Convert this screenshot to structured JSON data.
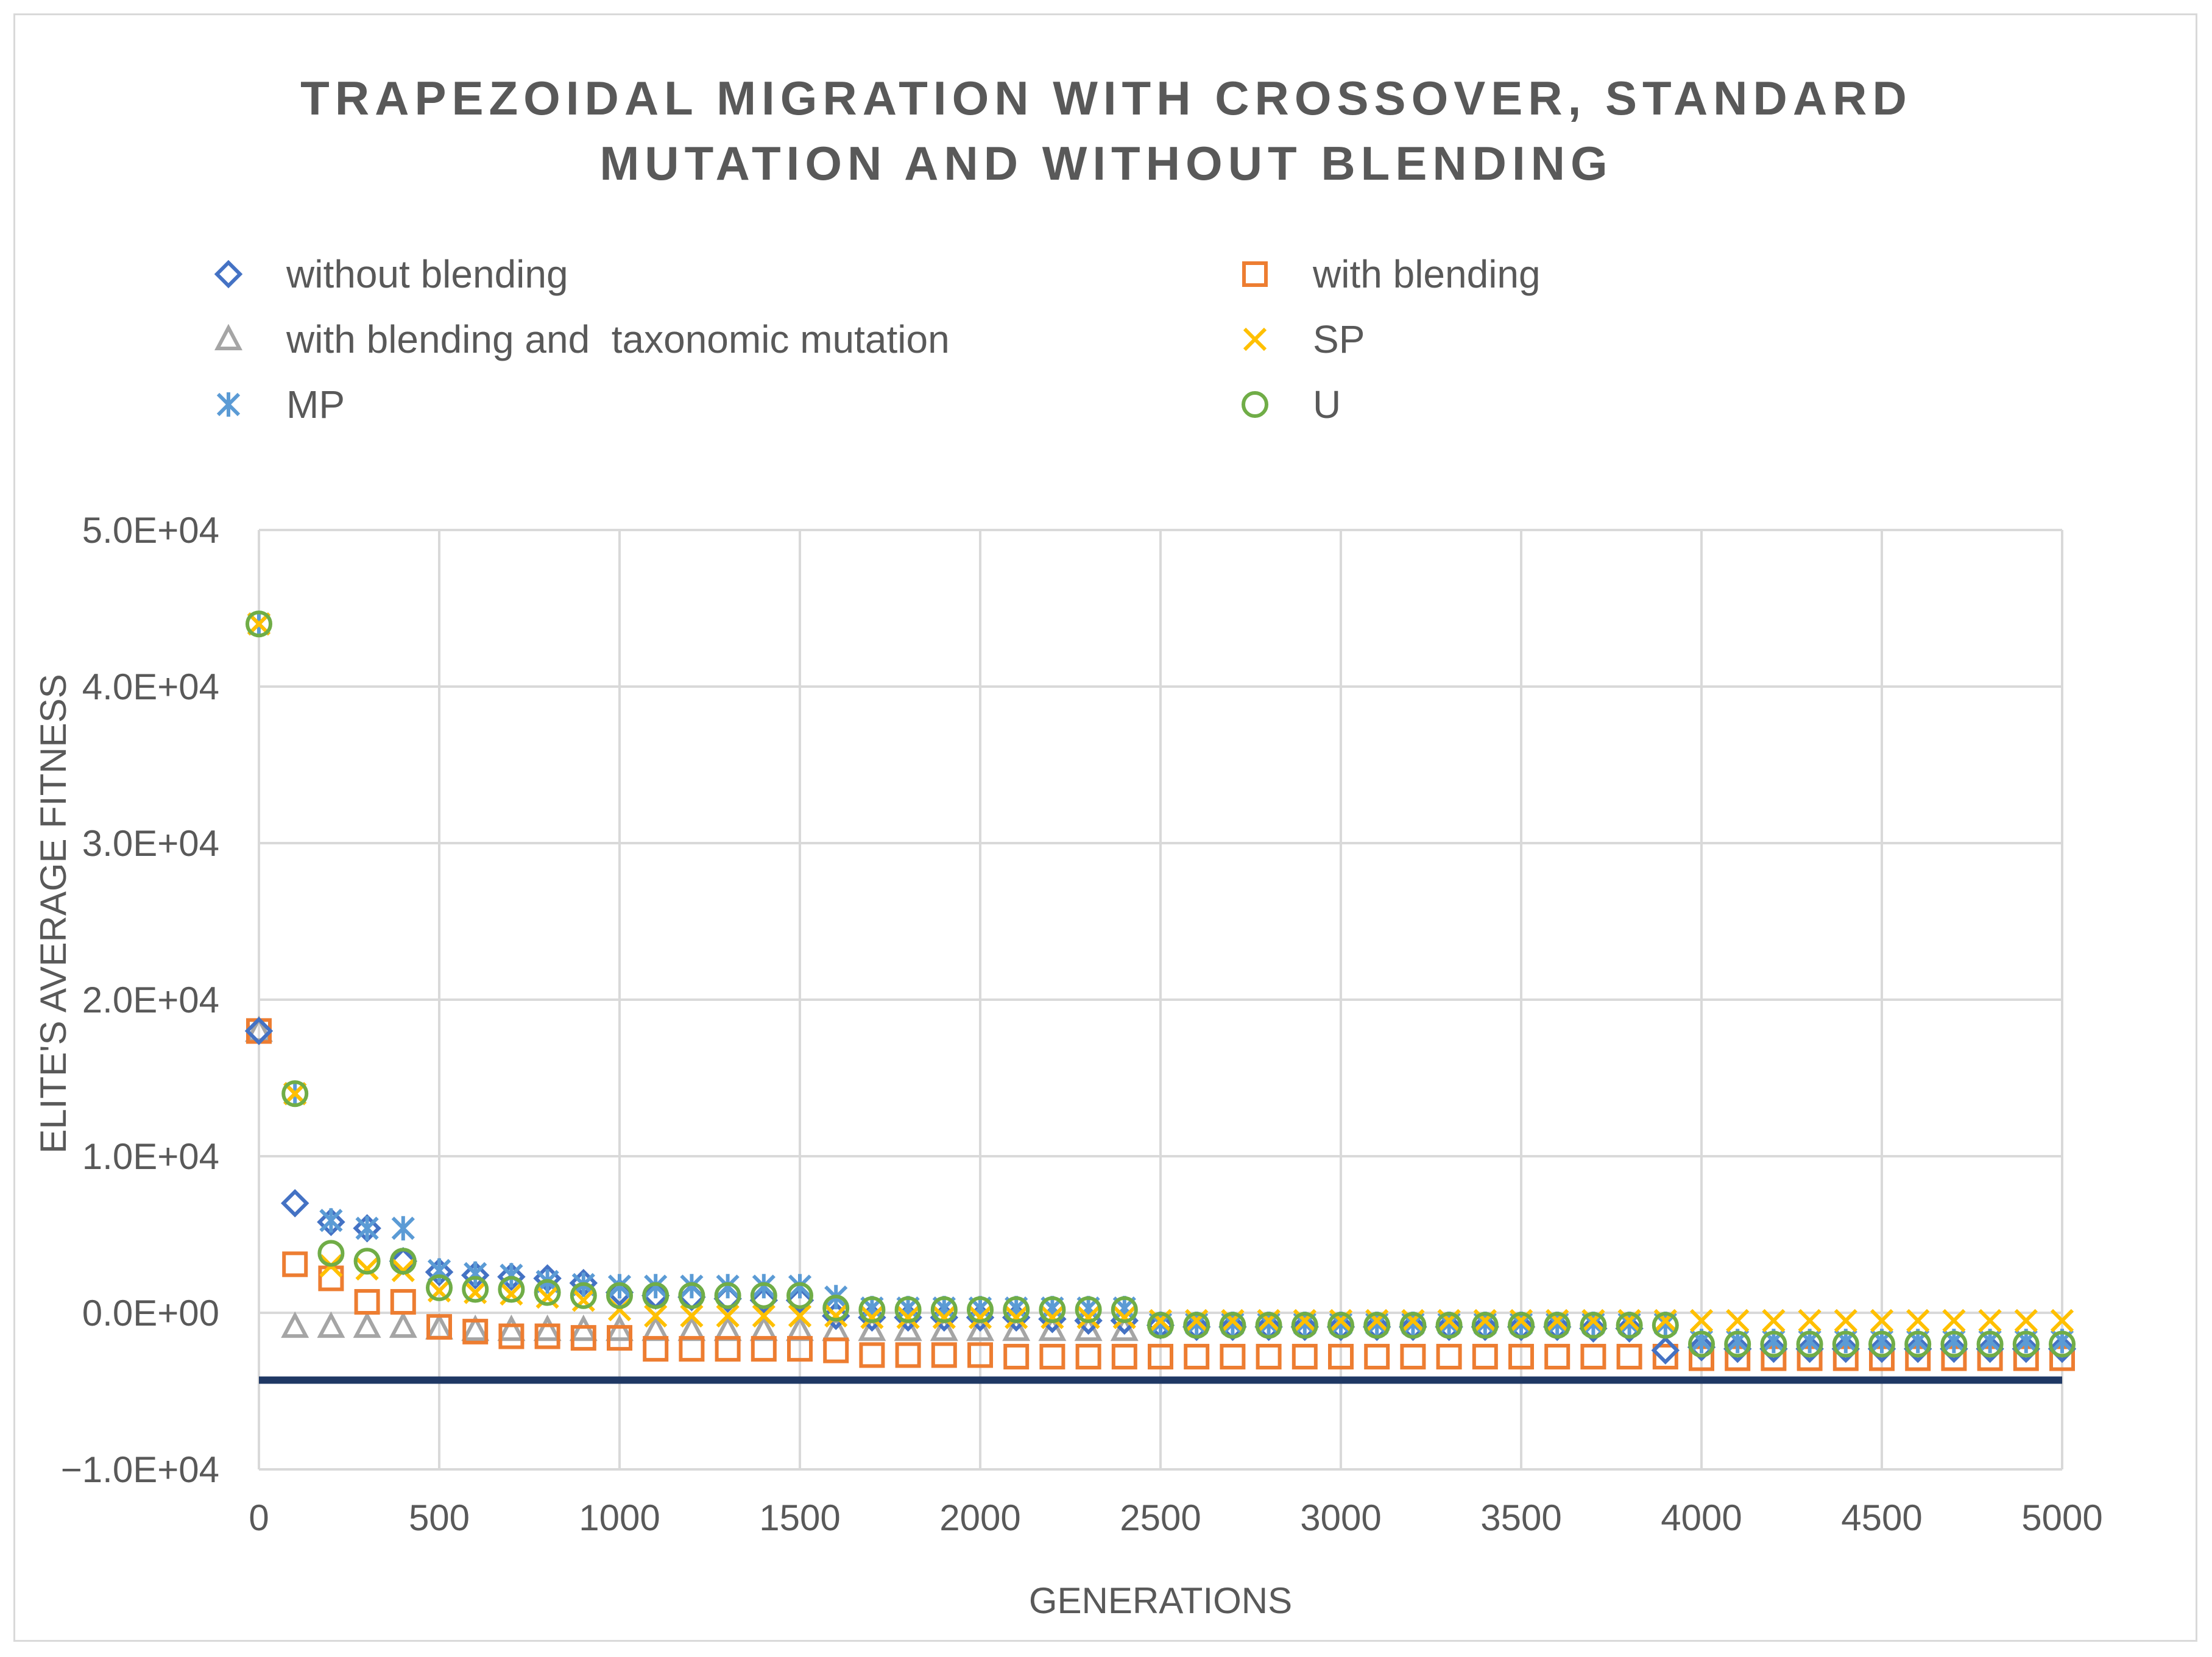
{
  "chart_data": {
    "type": "scatter",
    "title_lines": [
      "TRAPEZOIDAL MIGRATION WITH CROSSOVER, STANDARD",
      "MUTATION AND WITHOUT BLENDING"
    ],
    "xlabel": "GENERATIONS",
    "ylabel": "ELITE'S AVERAGE FITNESS",
    "xlim": [
      0,
      5000
    ],
    "ylim": [
      -10000,
      50000
    ],
    "x_ticks": [
      "0",
      "500",
      "1000",
      "1500",
      "2000",
      "2500",
      "3000",
      "3500",
      "4000",
      "4500",
      "5000"
    ],
    "y_ticks": [
      "−1.0E+04",
      "0.0E+00",
      "1.0E+04",
      "2.0E+04",
      "3.0E+04",
      "4.0E+04",
      "5.0E+04"
    ],
    "reference_line": {
      "y": -4300,
      "color": "#1f3864"
    },
    "series": [
      {
        "name": "without blending",
        "marker": "diamond",
        "color": "#4472c4",
        "x": [
          0,
          100,
          200,
          300,
          400,
          500,
          600,
          700,
          800,
          900,
          1000,
          1100,
          1200,
          1300,
          1400,
          1500,
          1600,
          1700,
          1800,
          1900,
          2000,
          2100,
          2200,
          2300,
          2400,
          2500,
          2600,
          2700,
          2800,
          2900,
          3000,
          3100,
          3200,
          3300,
          3400,
          3500,
          3600,
          3700,
          3800,
          3900,
          4000,
          4100,
          4200,
          4300,
          4400,
          4500,
          4600,
          4700,
          4800,
          4900,
          5000
        ],
        "y": [
          18000,
          7000,
          5800,
          5400,
          3300,
          2600,
          2400,
          2300,
          2200,
          1900,
          1300,
          1100,
          1000,
          900,
          800,
          800,
          -200,
          -300,
          -300,
          -300,
          -300,
          -300,
          -400,
          -500,
          -500,
          -800,
          -900,
          -900,
          -900,
          -900,
          -900,
          -900,
          -900,
          -900,
          -900,
          -900,
          -900,
          -1000,
          -1000,
          -2400,
          -2200,
          -2300,
          -2300,
          -2300,
          -2300,
          -2300,
          -2300,
          -2300,
          -2300,
          -2300,
          -2300
        ]
      },
      {
        "name": "with blending",
        "marker": "square",
        "color": "#ed7d31",
        "x": [
          0,
          100,
          200,
          300,
          400,
          500,
          600,
          700,
          800,
          900,
          1000,
          1100,
          1200,
          1300,
          1400,
          1500,
          1600,
          1700,
          1800,
          1900,
          2000,
          2100,
          2200,
          2300,
          2400,
          2500,
          2600,
          2700,
          2800,
          2900,
          3000,
          3100,
          3200,
          3300,
          3400,
          3500,
          3600,
          3700,
          3800,
          3900,
          4000,
          4100,
          4200,
          4300,
          4400,
          4500,
          4600,
          4700,
          4800,
          4900,
          5000
        ],
        "y": [
          18000,
          3100,
          2200,
          700,
          700,
          -900,
          -1200,
          -1500,
          -1500,
          -1600,
          -1600,
          -2300,
          -2300,
          -2300,
          -2300,
          -2300,
          -2400,
          -2700,
          -2700,
          -2700,
          -2700,
          -2800,
          -2800,
          -2800,
          -2800,
          -2800,
          -2800,
          -2800,
          -2800,
          -2800,
          -2800,
          -2800,
          -2800,
          -2800,
          -2800,
          -2800,
          -2800,
          -2800,
          -2800,
          -2800,
          -2900,
          -2900,
          -2900,
          -2900,
          -2900,
          -2900,
          -2900,
          -2900,
          -2900,
          -2900,
          -2900
        ]
      },
      {
        "name": "with blending and  taxonomic mutation",
        "marker": "triangle",
        "color": "#a5a5a5",
        "x": [
          0,
          100,
          200,
          300,
          400,
          500,
          600,
          700,
          800,
          900,
          1000,
          1100,
          1200,
          1300,
          1400,
          1500,
          1600,
          1700,
          1800,
          1900,
          2000,
          2100,
          2200,
          2300,
          2400
        ],
        "y": [
          18000,
          -900,
          -900,
          -900,
          -900,
          -1000,
          -1100,
          -1100,
          -1100,
          -1100,
          -1100,
          -1100,
          -1100,
          -1100,
          -1100,
          -1100,
          -1100,
          -1100,
          -1100,
          -1100,
          -1100,
          -1100,
          -1100,
          -1100,
          -1100
        ]
      },
      {
        "name": "SP",
        "marker": "x",
        "color": "#ffc000",
        "x": [
          0,
          100,
          200,
          300,
          400,
          500,
          600,
          700,
          800,
          900,
          1000,
          1100,
          1200,
          1300,
          1400,
          1500,
          1600,
          1700,
          1800,
          1900,
          2000,
          2100,
          2200,
          2300,
          2400,
          2500,
          2600,
          2700,
          2800,
          2900,
          3000,
          3100,
          3200,
          3300,
          3400,
          3500,
          3600,
          3700,
          3800,
          3900,
          4000,
          4100,
          4200,
          4300,
          4400,
          4500,
          4600,
          4700,
          4800,
          4900,
          5000
        ],
        "y": [
          44000,
          14000,
          3000,
          2800,
          2700,
          1400,
          1300,
          1200,
          1000,
          800,
          200,
          -200,
          -200,
          -200,
          -200,
          -200,
          -200,
          -300,
          -300,
          -300,
          -300,
          -300,
          -300,
          -300,
          -300,
          -500,
          -500,
          -500,
          -500,
          -500,
          -500,
          -500,
          -500,
          -500,
          -500,
          -500,
          -500,
          -500,
          -500,
          -500,
          -500,
          -500,
          -500,
          -500,
          -500,
          -500,
          -500,
          -500,
          -500,
          -500,
          -500
        ]
      },
      {
        "name": "MP",
        "marker": "asterisk",
        "color": "#5b9bd5",
        "x": [
          0,
          100,
          200,
          300,
          400,
          500,
          600,
          700,
          800,
          900,
          1000,
          1100,
          1200,
          1300,
          1400,
          1500,
          1600,
          1700,
          1800,
          1900,
          2000,
          2100,
          2200,
          2300,
          2400,
          2500,
          2600,
          2700,
          2800,
          2900,
          3000,
          3100,
          3200,
          3300,
          3400,
          3500,
          3600,
          3700,
          3800,
          3900,
          4000,
          4100,
          4200,
          4300,
          4400,
          4500,
          4600,
          4700,
          4800,
          4900,
          5000
        ],
        "y": [
          44000,
          14000,
          5900,
          5400,
          5400,
          2700,
          2500,
          2400,
          2000,
          1800,
          1700,
          1700,
          1700,
          1700,
          1700,
          1700,
          1000,
          300,
          300,
          300,
          300,
          300,
          300,
          300,
          300,
          -700,
          -700,
          -700,
          -700,
          -700,
          -700,
          -700,
          -700,
          -700,
          -700,
          -700,
          -700,
          -700,
          -700,
          -700,
          -1800,
          -1800,
          -1800,
          -1800,
          -1800,
          -1800,
          -1800,
          -1800,
          -1800,
          -1800,
          -1800
        ]
      },
      {
        "name": "U",
        "marker": "circle",
        "color": "#70ad47",
        "x": [
          0,
          100,
          200,
          300,
          400,
          500,
          600,
          700,
          800,
          900,
          1000,
          1100,
          1200,
          1300,
          1400,
          1500,
          1600,
          1700,
          1800,
          1900,
          2000,
          2100,
          2200,
          2300,
          2400,
          2500,
          2600,
          2700,
          2800,
          2900,
          3000,
          3100,
          3200,
          3300,
          3400,
          3500,
          3600,
          3700,
          3800,
          3900,
          4000,
          4100,
          4200,
          4300,
          4400,
          4500,
          4600,
          4700,
          4800,
          4900,
          5000
        ],
        "y": [
          44000,
          14000,
          3800,
          3300,
          3300,
          1600,
          1500,
          1500,
          1300,
          1100,
          1100,
          1100,
          1100,
          1100,
          1100,
          1100,
          300,
          200,
          200,
          200,
          200,
          200,
          200,
          200,
          200,
          -800,
          -800,
          -800,
          -800,
          -800,
          -800,
          -800,
          -800,
          -800,
          -800,
          -800,
          -800,
          -800,
          -800,
          -800,
          -2000,
          -2000,
          -2000,
          -2000,
          -2000,
          -2000,
          -2000,
          -2000,
          -2000,
          -2000,
          -2000
        ]
      }
    ]
  }
}
